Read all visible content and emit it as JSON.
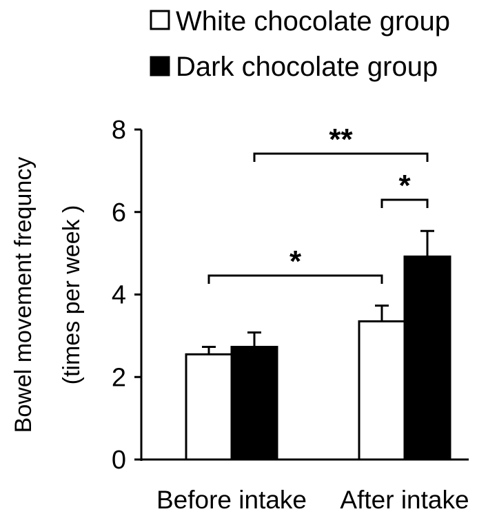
{
  "chart_data": {
    "type": "bar",
    "categories": [
      "Before intake",
      "After intake"
    ],
    "series": [
      {
        "name": "White chocolate group",
        "values": [
          2.55,
          3.35
        ],
        "errors": [
          0.18,
          0.38
        ],
        "color": "#ffffff"
      },
      {
        "name": "Dark chocolate group",
        "values": [
          2.73,
          4.92
        ],
        "errors": [
          0.35,
          0.62
        ],
        "color": "#000000"
      }
    ],
    "ylabel_lines": [
      "Bowel movement frequncy",
      "(times per week )"
    ],
    "xlabel": "",
    "ylim": [
      0,
      8
    ],
    "yticks": [
      0,
      2,
      4,
      6,
      8
    ],
    "legend_position": "top-center",
    "grid": false,
    "significance": [
      {
        "label": "**",
        "from": [
          0,
          1
        ],
        "to": [
          1,
          1
        ]
      },
      {
        "label": "*",
        "from": [
          1,
          0
        ],
        "to": [
          1,
          1
        ]
      },
      {
        "label": "*",
        "from": [
          0,
          0
        ],
        "to": [
          1,
          0
        ]
      }
    ]
  }
}
